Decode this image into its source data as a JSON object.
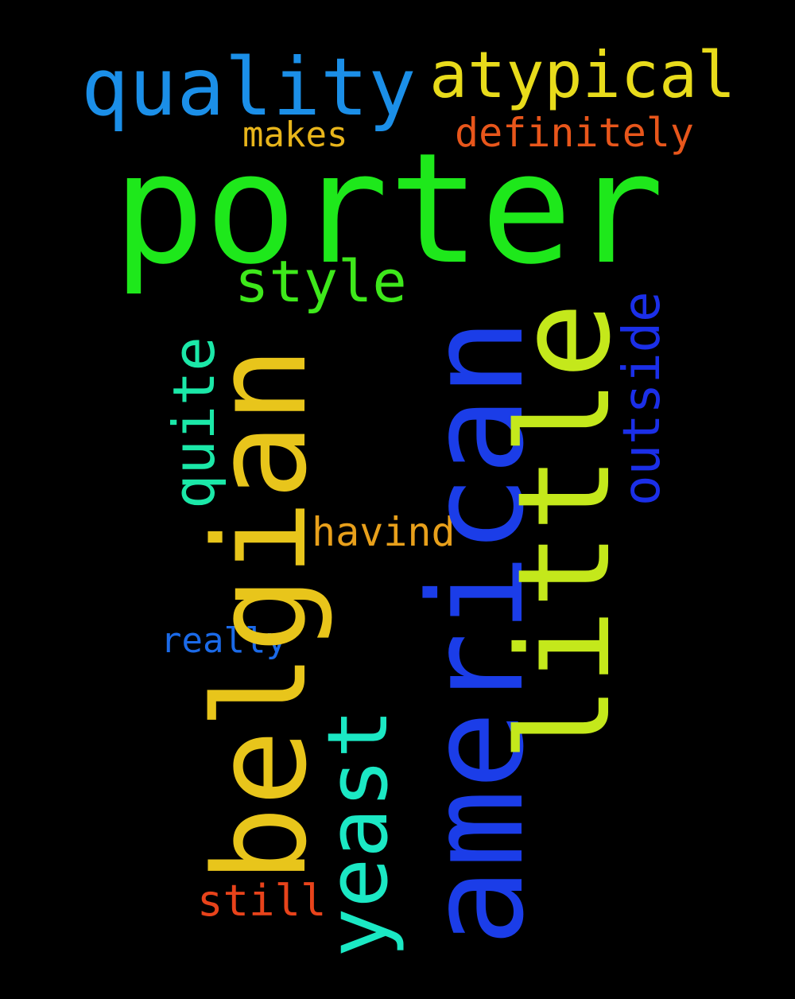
{
  "background": "#000000",
  "words": {
    "porter": {
      "text": "porter",
      "color": "#1ee81b"
    },
    "american": {
      "text": "american",
      "color": "#1b3de8"
    },
    "belgian": {
      "text": "belgian",
      "color": "#e8c51b"
    },
    "little": {
      "text": "little",
      "color": "#c4e81b"
    },
    "yeast": {
      "text": "yeast",
      "color": "#1be8c4"
    },
    "quality": {
      "text": "quality",
      "color": "#1b8fe8"
    },
    "atypical": {
      "text": "atypical",
      "color": "#e8db1b"
    },
    "style": {
      "text": "style",
      "color": "#3ee81b"
    },
    "quite": {
      "text": "quite",
      "color": "#1be8a8"
    },
    "outside": {
      "text": "outside",
      "color": "#1b2fe8"
    },
    "definitely": {
      "text": "definitely",
      "color": "#e8561b"
    },
    "makes": {
      "text": "makes",
      "color": "#e8b51b"
    },
    "havind": {
      "text": "havind",
      "color": "#e8a01b"
    },
    "really": {
      "text": "really",
      "color": "#1b6ae8"
    },
    "still": {
      "text": "still",
      "color": "#e8431b"
    }
  }
}
